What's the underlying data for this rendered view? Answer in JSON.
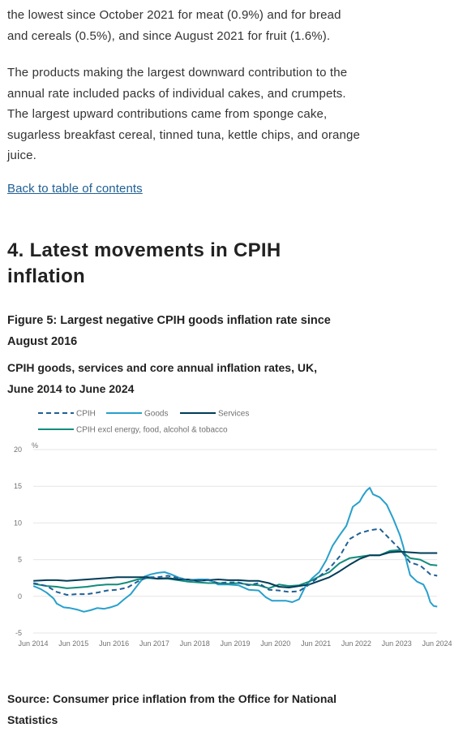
{
  "article": {
    "paragraph1": "the lowest since October 2021 for meat (0.9%) and for bread and cereals (0.5%), and since August 2021 for fruit (1.6%).",
    "paragraph2": "The products making the largest downward contribution to the annual rate included packs of individual cakes, and crumpets. The largest upward contributions came from sponge cake, sugarless breakfast cereal, tinned tuna, kettle chips, and orange juice.",
    "back_link": "Back to table of contents",
    "section_heading": "4.  Latest movements in CPIH inflation",
    "figure_title": "Figure 5: Largest negative CPIH goods inflation rate since August 2016",
    "figure_subtitle": "CPIH goods, services and core annual inflation rates, UK, June 2014 to June 2024",
    "source": "Source: Consumer price inflation from the Office for National Statistics"
  },
  "colors": {
    "link": "#206095",
    "cpih": "#206095",
    "goods": "#27a0cc",
    "services": "#003c57",
    "core": "#118c7b",
    "gridline": "#e6e6e6"
  },
  "chart_data": {
    "type": "line",
    "title": "Figure 5: Largest negative CPIH goods inflation rate since August 2016",
    "subtitle": "CPIH goods, services and core annual inflation rates, UK, June 2014 to June 2024",
    "ylabel": "%",
    "ylim": [
      -5,
      20
    ],
    "yticks": [
      "20",
      "15",
      "10",
      "5",
      "0",
      "-5"
    ],
    "xlim": [
      2014.4167,
      2024.4167
    ],
    "xticks": [
      {
        "label": "Jun 2014",
        "x": 2014.4167
      },
      {
        "label": "Jun 2015",
        "x": 2015.4167
      },
      {
        "label": "Jun 2016",
        "x": 2016.4167
      },
      {
        "label": "Jun 2017",
        "x": 2017.4167
      },
      {
        "label": "Jun 2018",
        "x": 2018.4167
      },
      {
        "label": "Jun 2019",
        "x": 2019.4167
      },
      {
        "label": "Jun 2020",
        "x": 2020.4167
      },
      {
        "label": "Jun 2021",
        "x": 2021.4167
      },
      {
        "label": "Jun 2022",
        "x": 2022.4167
      },
      {
        "label": "Jun 2023",
        "x": 2023.4167
      },
      {
        "label": "Jun 2024",
        "x": 2024.4167
      }
    ],
    "grid": true,
    "legend_position": "top",
    "series": [
      {
        "name": "CPIH",
        "style": "dashed",
        "color": "#206095",
        "points": [
          [
            2014.42,
            1.8
          ],
          [
            2014.75,
            1.4
          ],
          [
            2015.0,
            0.6
          ],
          [
            2015.25,
            0.2
          ],
          [
            2015.5,
            0.3
          ],
          [
            2015.75,
            0.3
          ],
          [
            2016.0,
            0.5
          ],
          [
            2016.25,
            0.8
          ],
          [
            2016.5,
            0.9
          ],
          [
            2016.75,
            1.2
          ],
          [
            2017.0,
            2.0
          ],
          [
            2017.25,
            2.6
          ],
          [
            2017.5,
            2.6
          ],
          [
            2017.75,
            2.8
          ],
          [
            2018.0,
            2.5
          ],
          [
            2018.25,
            2.2
          ],
          [
            2018.5,
            2.2
          ],
          [
            2018.75,
            2.2
          ],
          [
            2019.0,
            1.8
          ],
          [
            2019.25,
            1.9
          ],
          [
            2019.5,
            1.9
          ],
          [
            2019.75,
            1.5
          ],
          [
            2020.0,
            1.8
          ],
          [
            2020.25,
            0.9
          ],
          [
            2020.5,
            0.8
          ],
          [
            2020.75,
            0.6
          ],
          [
            2021.0,
            0.7
          ],
          [
            2021.25,
            1.6
          ],
          [
            2021.5,
            2.7
          ],
          [
            2021.75,
            3.8
          ],
          [
            2022.0,
            5.4
          ],
          [
            2022.25,
            7.8
          ],
          [
            2022.5,
            8.6
          ],
          [
            2022.75,
            9.0
          ],
          [
            2023.0,
            9.2
          ],
          [
            2023.25,
            7.8
          ],
          [
            2023.5,
            6.4
          ],
          [
            2023.75,
            4.6
          ],
          [
            2024.0,
            4.2
          ],
          [
            2024.25,
            3.0
          ],
          [
            2024.42,
            2.8
          ]
        ]
      },
      {
        "name": "Goods",
        "style": "solid",
        "color": "#27a0cc",
        "points": [
          [
            2014.42,
            1.4
          ],
          [
            2014.6,
            1.0
          ],
          [
            2014.75,
            0.5
          ],
          [
            2014.92,
            -0.3
          ],
          [
            2015.0,
            -1.0
          ],
          [
            2015.17,
            -1.5
          ],
          [
            2015.33,
            -1.6
          ],
          [
            2015.5,
            -1.8
          ],
          [
            2015.67,
            -2.1
          ],
          [
            2015.83,
            -1.9
          ],
          [
            2016.0,
            -1.6
          ],
          [
            2016.17,
            -1.7
          ],
          [
            2016.33,
            -1.5
          ],
          [
            2016.5,
            -1.2
          ],
          [
            2016.67,
            -0.4
          ],
          [
            2016.83,
            0.3
          ],
          [
            2017.0,
            1.5
          ],
          [
            2017.17,
            2.7
          ],
          [
            2017.33,
            3.0
          ],
          [
            2017.5,
            3.2
          ],
          [
            2017.67,
            3.3
          ],
          [
            2017.83,
            3.0
          ],
          [
            2018.0,
            2.6
          ],
          [
            2018.25,
            2.2
          ],
          [
            2018.5,
            2.3
          ],
          [
            2018.75,
            2.3
          ],
          [
            2019.0,
            1.6
          ],
          [
            2019.25,
            1.6
          ],
          [
            2019.5,
            1.5
          ],
          [
            2019.75,
            0.9
          ],
          [
            2020.0,
            0.8
          ],
          [
            2020.17,
            -0.1
          ],
          [
            2020.33,
            -0.6
          ],
          [
            2020.5,
            -0.6
          ],
          [
            2020.67,
            -0.6
          ],
          [
            2020.83,
            -0.8
          ],
          [
            2021.0,
            -0.4
          ],
          [
            2021.17,
            1.5
          ],
          [
            2021.33,
            2.5
          ],
          [
            2021.5,
            3.3
          ],
          [
            2021.67,
            4.9
          ],
          [
            2021.83,
            6.9
          ],
          [
            2022.0,
            8.3
          ],
          [
            2022.17,
            9.6
          ],
          [
            2022.33,
            12.2
          ],
          [
            2022.5,
            12.9
          ],
          [
            2022.58,
            13.7
          ],
          [
            2022.67,
            14.4
          ],
          [
            2022.75,
            14.8
          ],
          [
            2022.83,
            13.9
          ],
          [
            2023.0,
            13.5
          ],
          [
            2023.17,
            12.5
          ],
          [
            2023.33,
            10.6
          ],
          [
            2023.5,
            8.3
          ],
          [
            2023.58,
            6.8
          ],
          [
            2023.67,
            4.6
          ],
          [
            2023.75,
            2.9
          ],
          [
            2023.92,
            2.0
          ],
          [
            2024.08,
            1.6
          ],
          [
            2024.17,
            0.6
          ],
          [
            2024.25,
            -0.8
          ],
          [
            2024.33,
            -1.3
          ],
          [
            2024.42,
            -1.4
          ]
        ]
      },
      {
        "name": "Services",
        "style": "solid",
        "color": "#003c57",
        "points": [
          [
            2014.42,
            2.1
          ],
          [
            2014.75,
            2.2
          ],
          [
            2015.0,
            2.2
          ],
          [
            2015.25,
            2.1
          ],
          [
            2015.5,
            2.2
          ],
          [
            2015.75,
            2.3
          ],
          [
            2016.0,
            2.4
          ],
          [
            2016.25,
            2.5
          ],
          [
            2016.5,
            2.6
          ],
          [
            2016.75,
            2.6
          ],
          [
            2017.0,
            2.6
          ],
          [
            2017.25,
            2.6
          ],
          [
            2017.5,
            2.4
          ],
          [
            2017.75,
            2.5
          ],
          [
            2018.0,
            2.3
          ],
          [
            2018.25,
            2.3
          ],
          [
            2018.5,
            2.1
          ],
          [
            2018.75,
            2.2
          ],
          [
            2019.0,
            2.3
          ],
          [
            2019.25,
            2.2
          ],
          [
            2019.5,
            2.2
          ],
          [
            2019.75,
            2.1
          ],
          [
            2020.0,
            2.1
          ],
          [
            2020.25,
            1.8
          ],
          [
            2020.5,
            1.3
          ],
          [
            2020.75,
            1.2
          ],
          [
            2021.0,
            1.4
          ],
          [
            2021.25,
            1.6
          ],
          [
            2021.5,
            2.1
          ],
          [
            2021.75,
            2.6
          ],
          [
            2022.0,
            3.4
          ],
          [
            2022.25,
            4.3
          ],
          [
            2022.5,
            5.1
          ],
          [
            2022.75,
            5.6
          ],
          [
            2023.0,
            5.6
          ],
          [
            2023.25,
            6.0
          ],
          [
            2023.5,
            6.1
          ],
          [
            2023.75,
            6.0
          ],
          [
            2024.0,
            5.9
          ],
          [
            2024.25,
            5.9
          ],
          [
            2024.42,
            5.9
          ]
        ]
      },
      {
        "name": "CPIH excl energy, food, alcohol & tobacco",
        "style": "solid",
        "color": "#118c7b",
        "points": [
          [
            2014.42,
            1.7
          ],
          [
            2014.75,
            1.4
          ],
          [
            2015.0,
            1.3
          ],
          [
            2015.25,
            1.1
          ],
          [
            2015.5,
            1.2
          ],
          [
            2015.75,
            1.3
          ],
          [
            2016.0,
            1.5
          ],
          [
            2016.25,
            1.6
          ],
          [
            2016.5,
            1.6
          ],
          [
            2016.75,
            1.9
          ],
          [
            2017.0,
            2.3
          ],
          [
            2017.25,
            2.5
          ],
          [
            2017.5,
            2.4
          ],
          [
            2017.75,
            2.4
          ],
          [
            2018.0,
            2.2
          ],
          [
            2018.25,
            2.0
          ],
          [
            2018.5,
            1.9
          ],
          [
            2018.75,
            1.8
          ],
          [
            2019.0,
            1.8
          ],
          [
            2019.25,
            1.7
          ],
          [
            2019.5,
            1.8
          ],
          [
            2019.75,
            1.6
          ],
          [
            2020.0,
            1.5
          ],
          [
            2020.25,
            1.1
          ],
          [
            2020.5,
            1.6
          ],
          [
            2020.75,
            1.4
          ],
          [
            2021.0,
            1.5
          ],
          [
            2021.25,
            2.0
          ],
          [
            2021.5,
            2.7
          ],
          [
            2021.75,
            3.3
          ],
          [
            2022.0,
            4.5
          ],
          [
            2022.25,
            5.2
          ],
          [
            2022.5,
            5.4
          ],
          [
            2022.75,
            5.6
          ],
          [
            2023.0,
            5.6
          ],
          [
            2023.25,
            6.2
          ],
          [
            2023.5,
            6.3
          ],
          [
            2023.75,
            5.2
          ],
          [
            2024.0,
            5.0
          ],
          [
            2024.25,
            4.3
          ],
          [
            2024.42,
            4.2
          ]
        ]
      }
    ]
  }
}
